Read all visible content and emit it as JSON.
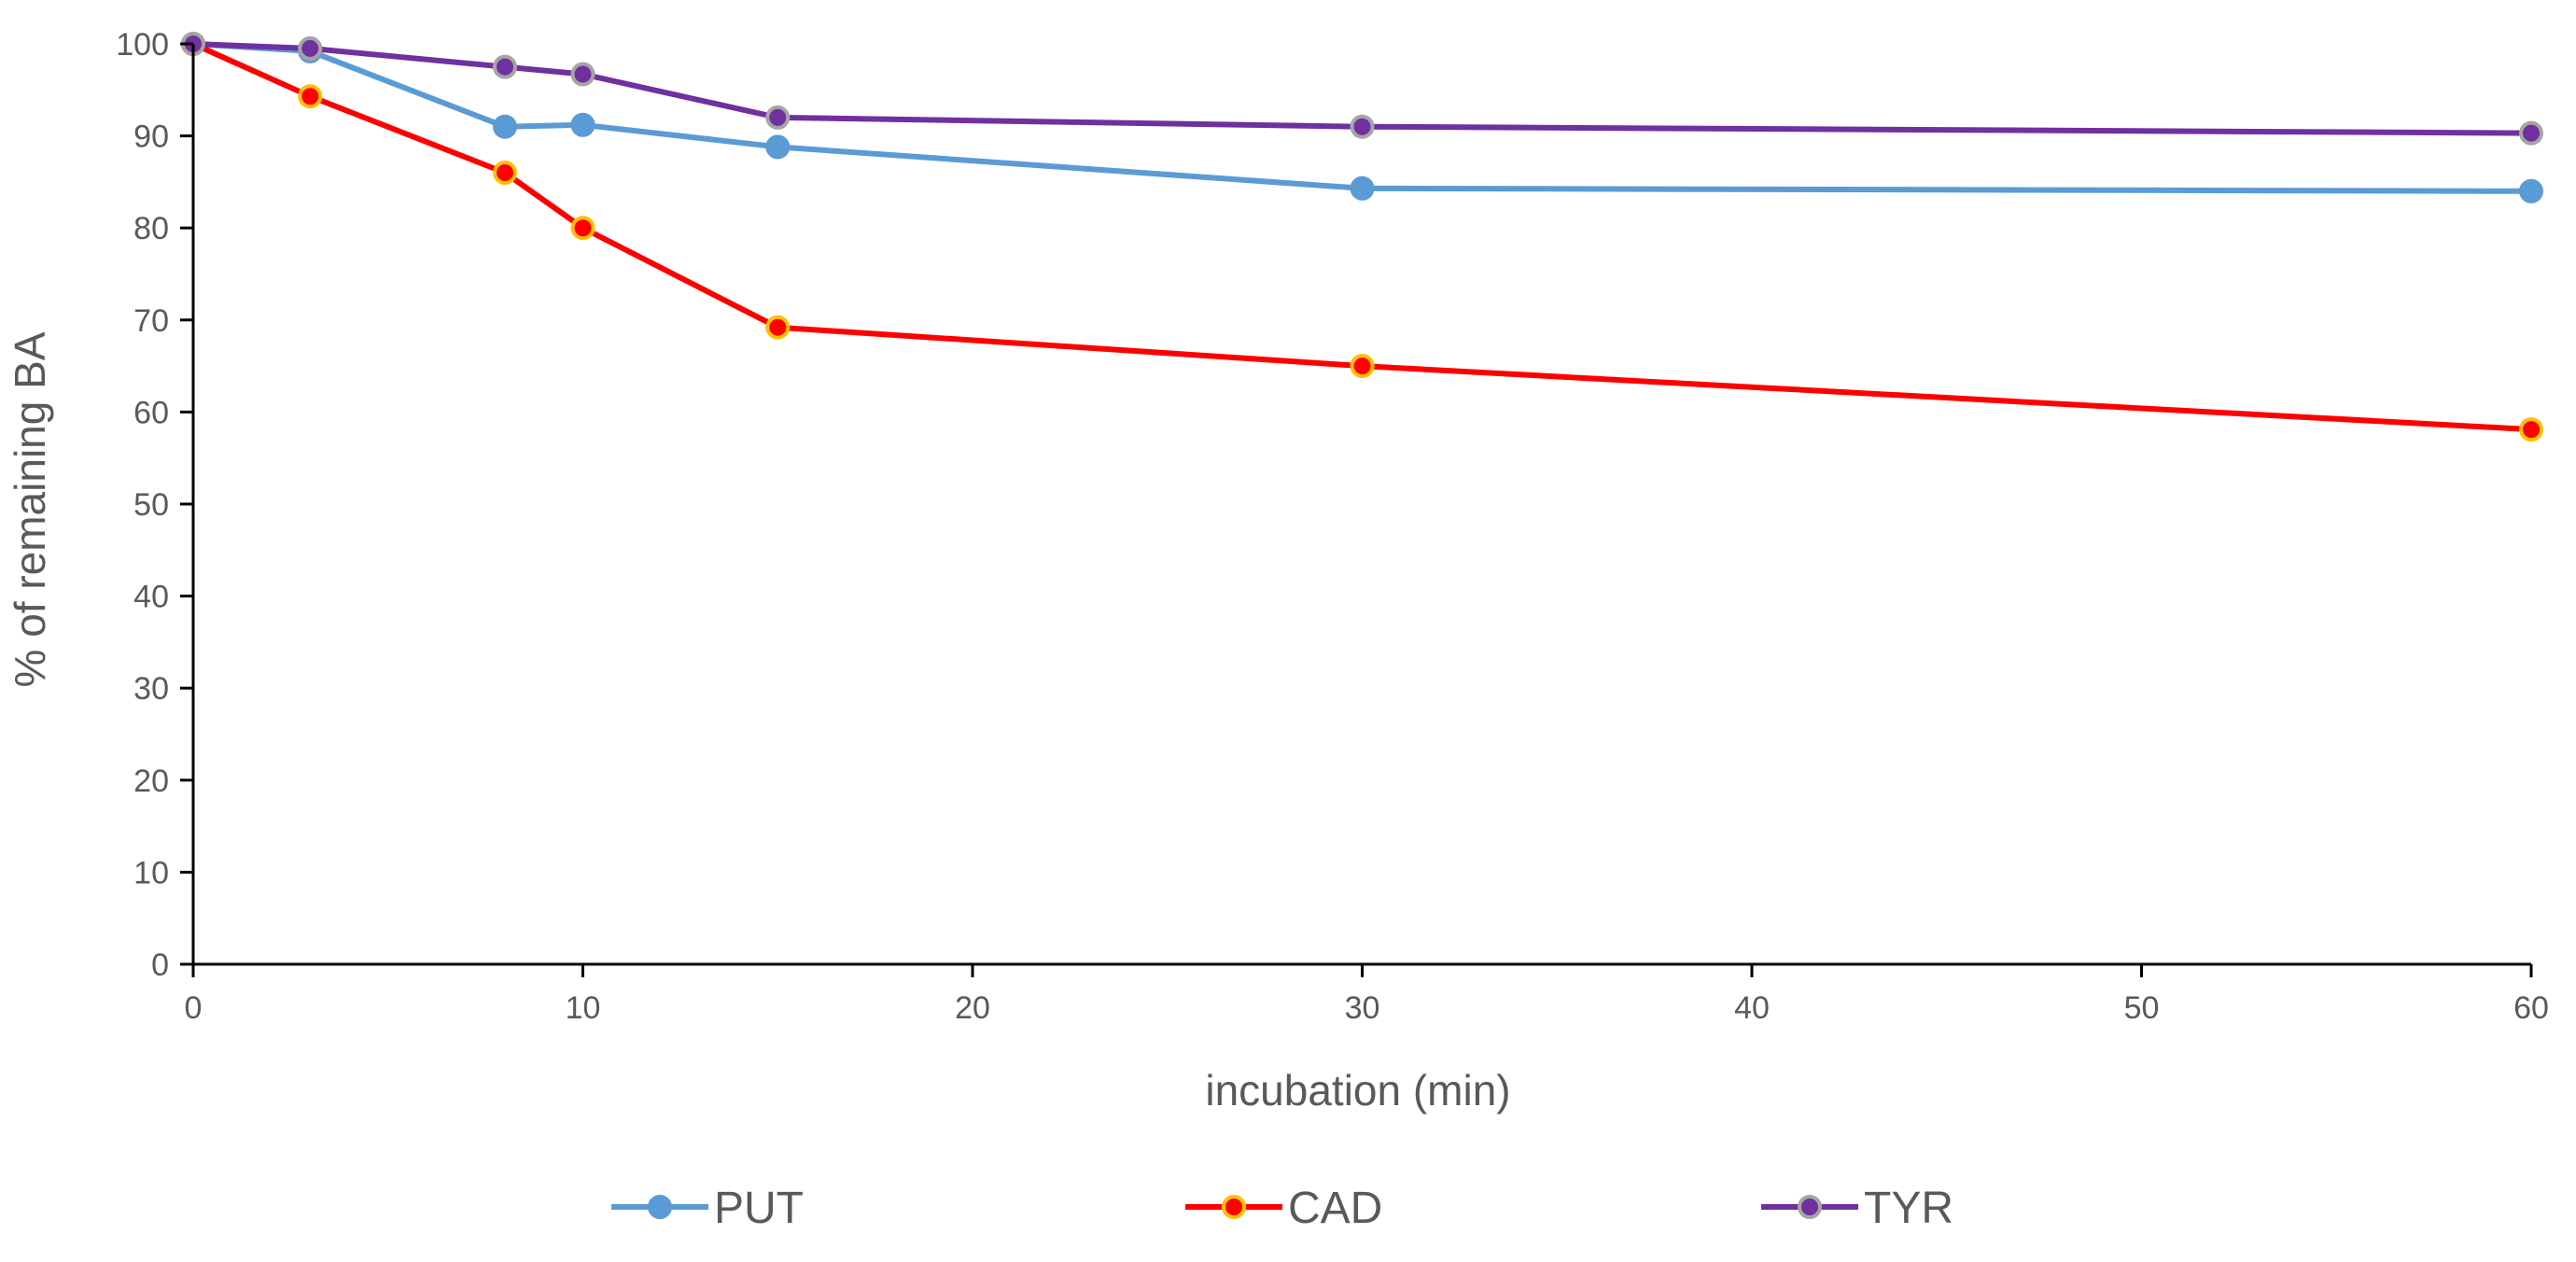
{
  "chart_data": {
    "type": "line",
    "title": "",
    "xlabel": "incubation (min)",
    "ylabel": "% of remaining BA",
    "xlim": [
      0,
      60
    ],
    "ylim": [
      0,
      100
    ],
    "x_ticks": [
      0,
      10,
      20,
      30,
      40,
      50,
      60
    ],
    "y_ticks": [
      0,
      10,
      20,
      30,
      40,
      50,
      60,
      70,
      80,
      90,
      100
    ],
    "x_tick_labels": [
      "0",
      "10",
      "20",
      "30",
      "40",
      "50",
      "60"
    ],
    "y_tick_labels": [
      "0",
      "10",
      "20",
      "30",
      "40",
      "50",
      "60",
      "70",
      "80",
      "90",
      "100"
    ],
    "grid": false,
    "legend_position": "bottom",
    "x": [
      0,
      3,
      8,
      10,
      15,
      30,
      60
    ],
    "series": [
      {
        "name": "PUT",
        "values": [
          100,
          99.2,
          91.0,
          91.2,
          88.8,
          84.3,
          84.0
        ],
        "line_color": "#5b9bd5",
        "marker_fill": "#5b9bd5",
        "marker_edge": "#5b9bd5"
      },
      {
        "name": "CAD",
        "values": [
          100,
          94.3,
          86.0,
          80.0,
          69.2,
          65.0,
          58.1
        ],
        "line_color": "#ff0000",
        "marker_fill": "#ff0000",
        "marker_edge": "#ffc000"
      },
      {
        "name": "TYR",
        "values": [
          100,
          99.5,
          97.5,
          96.7,
          92.0,
          91.0,
          90.3
        ],
        "line_color": "#7030a0",
        "marker_fill": "#7030a0",
        "marker_edge": "#a5a5a5"
      }
    ]
  }
}
